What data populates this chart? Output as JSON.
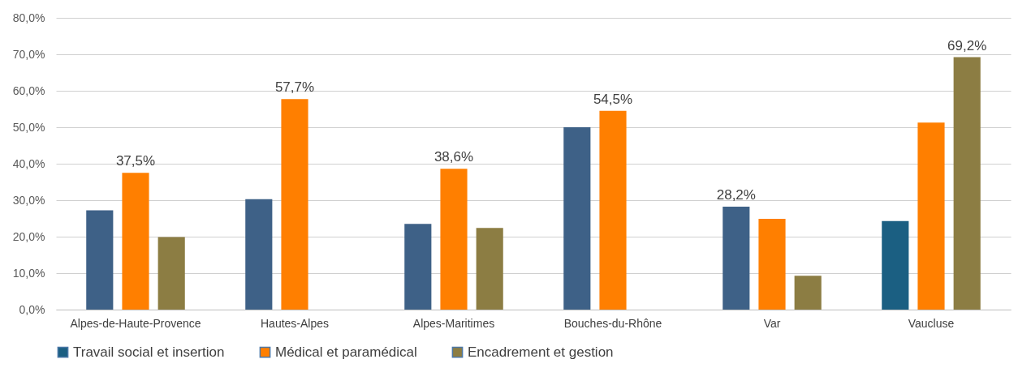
{
  "chart_data": {
    "type": "bar",
    "categories": [
      "Alpes-de-Haute-Provence",
      "Hautes-Alpes",
      "Alpes-Maritimes",
      "Bouches-du-Rhône",
      "Var",
      "Vaucluse"
    ],
    "series": [
      {
        "name": "Travail social et insertion",
        "color": "#1b5f82",
        "colors": [
          "#3e6187",
          "#3e6187",
          "#3e6187",
          "#3e6187",
          "#3e6187",
          "#1b5f82"
        ],
        "values": [
          27.2,
          30.3,
          23.5,
          50.0,
          28.2,
          24.3
        ],
        "value_labels": [
          null,
          null,
          null,
          null,
          "28,2%",
          null
        ]
      },
      {
        "name": "Médical et paramédical",
        "color": "#ff7f00",
        "values": [
          37.5,
          57.7,
          38.6,
          54.5,
          24.9,
          51.3
        ],
        "value_labels": [
          "37,5%",
          "57,7%",
          "38,6%",
          "54,5%",
          null,
          null
        ]
      },
      {
        "name": "Encadrement et gestion",
        "color": "#8c7d43",
        "values": [
          19.9,
          null,
          22.4,
          null,
          9.3,
          69.2
        ],
        "value_labels": [
          null,
          null,
          null,
          null,
          null,
          "69,2%"
        ]
      }
    ],
    "ylim": [
      0,
      80
    ],
    "yticks": [
      {
        "value": 0,
        "label": "0,0%"
      },
      {
        "value": 10,
        "label": "10,0%"
      },
      {
        "value": 20,
        "label": "20,0%"
      },
      {
        "value": 30,
        "label": "30,0%"
      },
      {
        "value": 40,
        "label": "40,0%"
      },
      {
        "value": 50,
        "label": "50,0%"
      },
      {
        "value": 60,
        "label": "60,0%"
      },
      {
        "value": 70,
        "label": "70,0%"
      },
      {
        "value": 80,
        "label": "80,0%"
      }
    ],
    "grid": "y",
    "legend": "bottom"
  }
}
